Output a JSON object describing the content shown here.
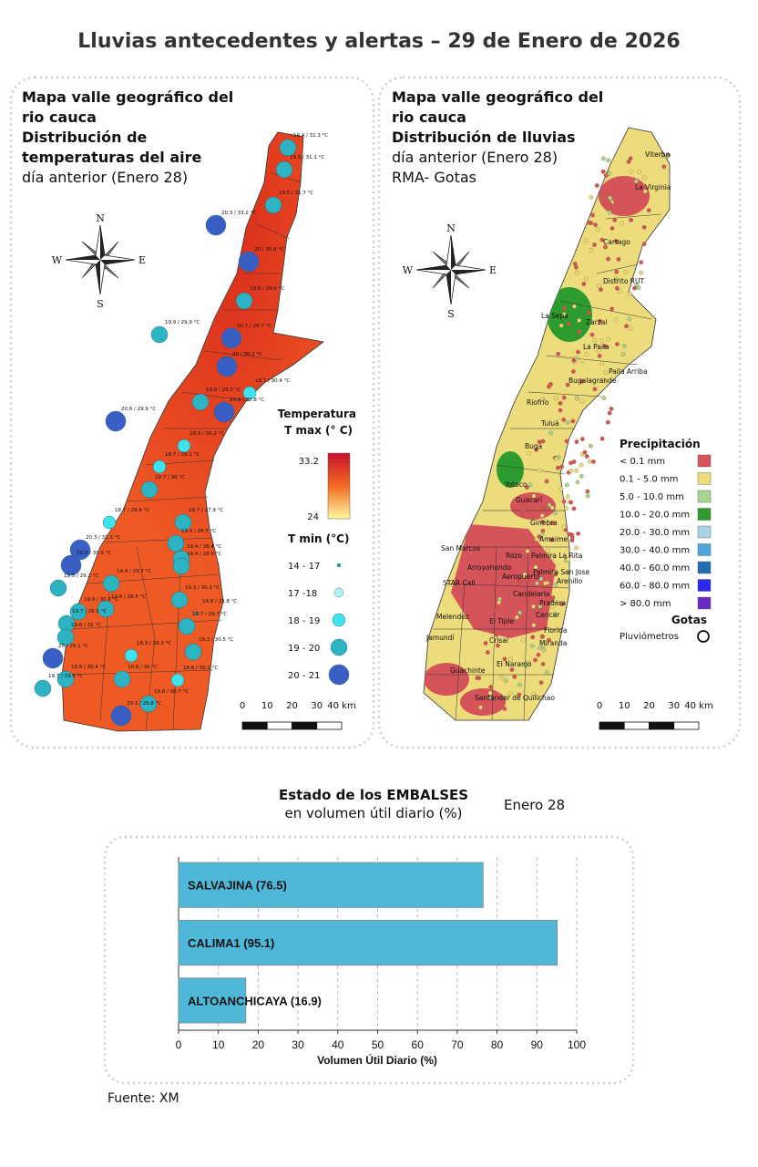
{
  "header": {
    "title": "Lluvias antecedentes y alertas – 29 de Enero de 2026"
  },
  "temperature_map": {
    "title_lines": [
      "Mapa valle geográfico del",
      "rio cauca",
      "Distribución de",
      "temperaturas del aire"
    ],
    "subtitle": "día anterior (Enero 28)",
    "compass": {
      "n": "N",
      "s": "S",
      "e": "E",
      "w": "W"
    },
    "stations": [
      "19.4 / 31.3 °C",
      "19.5 / 31.1 °C",
      "19.5 / 31.7 °C",
      "20.3 / 33.2 °C",
      "20 / 30.8 °C",
      "19.8 / 29.6 °C",
      "19.9 / 29.9 °C",
      "20.7 / 29.7 °C",
      "20 / 30.2 °C",
      "18.7 / 30.4 °C",
      "19.8 / 29.3 °C",
      "20.8 / 30.8 °C",
      "20.6 / 29.9 °C",
      "18.9 / 30.2 °C",
      "18.7 / 29.1 °C",
      "19.7 / 30 °C",
      "18.7 / 29.4 °C",
      "19.7 / 27.9 °C",
      "20.3 / 31.3 °C",
      "19.4 / 28.5 °C",
      "19.4 / 28.4 °C",
      "20.3 / 30.9 °C",
      "19.4 / 28.9 °C",
      "19.5 / 29.2 °C",
      "19.4 / 29.7 °C",
      "19.9 / 30.3 °C",
      "19.8 / 29.5 °C",
      "19.3 / 30.3 °C",
      "14.8 / 23.8 °C",
      "19.7 / 29.5 °C",
      "19.6 / 31 °C",
      "19.7 / 29.7 °C",
      "20 / 29.1 °C",
      "18.9 / 29.3 °C",
      "19.3 / 30.5 °C",
      "19.8 / 30.4 °C",
      "19.8 / 30 °C",
      "18.8 / 30.1 °C",
      "19.7 / 29.6 °C",
      "19.8 / 30.7 °C",
      "20.3 / 29.8 °C"
    ],
    "legend": {
      "title": "Temperatura",
      "tmax_label": "T max (° C)",
      "tmax_high": 33.2,
      "tmax_low": 24,
      "tmax_colors": [
        "#c8102e",
        "#f26b21",
        "#fff7a0"
      ],
      "tmin_label": "T min (°C)",
      "tmin_classes": [
        {
          "label": "14 - 17",
          "color": "#2aa59a"
        },
        {
          "label": "17 -18",
          "color": "#b4f3f3"
        },
        {
          "label": "18 - 19",
          "color": "#3fe3ec"
        },
        {
          "label": "19 - 20",
          "color": "#2eb3c2"
        },
        {
          "label": "20 - 21",
          "color": "#3a5fc4"
        }
      ]
    },
    "scale": [
      "0",
      "10",
      "20",
      "30",
      "40 km"
    ]
  },
  "rain_map": {
    "title_lines": [
      "Mapa valle geográfico del",
      "rio cauca"
    ],
    "heading": "Distribución de lluvias",
    "subtitle_lines": [
      "día anterior (Enero 28)",
      "RMA- Gotas"
    ],
    "compass": {
      "n": "N",
      "s": "S",
      "e": "E",
      "w": "W"
    },
    "places": [
      "Viterbo",
      "La Virginia",
      "Cartago",
      "Distrito RUT",
      "La Sepa",
      "Zarzal",
      "La Paila",
      "Paila Arriba",
      "Bugalagrande",
      "Riofrío",
      "Tuluá",
      "Buga",
      "Yotoco",
      "Guacarí",
      "Ginebra",
      "Amaime",
      "San Marcos",
      "Rozo",
      "Palmira La Rita",
      "Arroyohondo",
      "Palmira San Jose",
      "Aeropuerto",
      "Arenillo",
      "STAR Cali",
      "Candelaria",
      "Pradera",
      "Melendez",
      "Cencar",
      "El Tiple",
      "Florida",
      "Jamundí",
      "Crisal",
      "Miranda",
      "El Naranjo",
      "Guachinte",
      "Santander de Quilichao"
    ],
    "legend": {
      "title": "Precipitación",
      "items": [
        {
          "label": "< 0.1 mm",
          "color": "#d4545a"
        },
        {
          "label": "0.1 - 5.0 mm",
          "color": "#ecdc7c"
        },
        {
          "label": "5.0 - 10.0 mm",
          "color": "#a9d591"
        },
        {
          "label": "10.0 - 20.0 mm",
          "color": "#2e9b2e"
        },
        {
          "label": "20.0 - 30.0 mm",
          "color": "#a9d3e6"
        },
        {
          "label": "30.0 - 40.0 mm",
          "color": "#4ea6dc"
        },
        {
          "label": "40.0 - 60.0 mm",
          "color": "#1f6fb0"
        },
        {
          "label": "60.0 - 80.0 mm",
          "color": "#2a2ae8"
        },
        {
          "label": "> 80.0 mm",
          "color": "#6a2bc4"
        }
      ],
      "gauges_title": "Gotas",
      "gauges_label": "Pluviómetros"
    },
    "scale": [
      "0",
      "10",
      "20",
      "30",
      "40 km"
    ]
  },
  "chart_data": {
    "type": "bar",
    "title": "Estado de los EMBALSES",
    "subtitle": "en volumen útil diario (%)",
    "annotation": "Enero 28",
    "categories": [
      "SALVAJINA (76.5)",
      "CALIMA1 (95.1)",
      "ALTOANCHICAYA (16.9)"
    ],
    "values": [
      76.5,
      95.1,
      16.9
    ],
    "color": "#4fb8d9",
    "xlim": [
      0,
      100
    ],
    "xticks": [
      0,
      10,
      20,
      30,
      40,
      50,
      60,
      70,
      80,
      90,
      100
    ],
    "xlabel": "Volumen Útil Diario (%)",
    "grid": true
  },
  "footer": {
    "source": "Fuente: XM"
  }
}
